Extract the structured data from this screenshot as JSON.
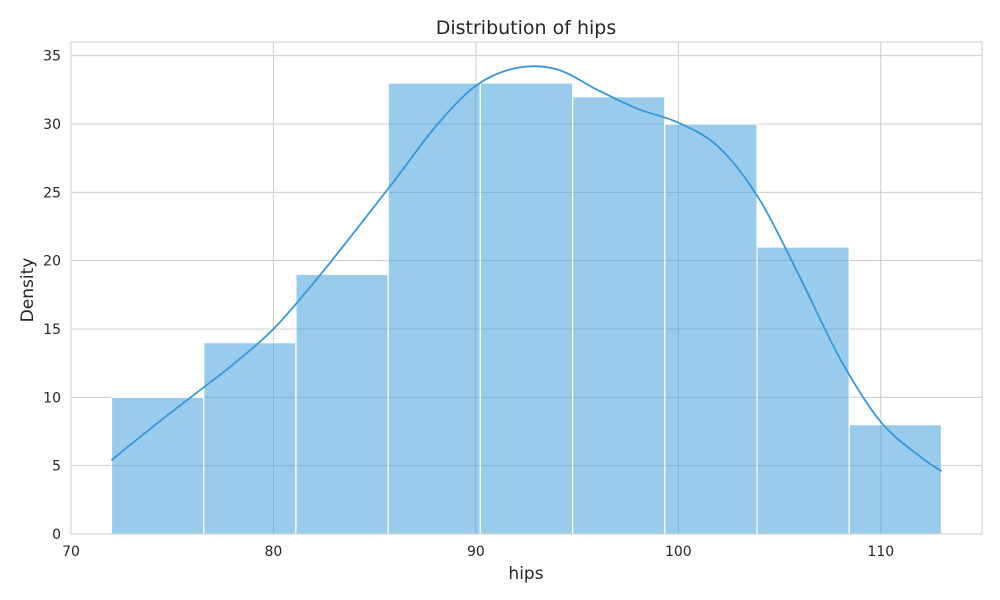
{
  "chart_data": {
    "type": "bar",
    "title": "Distribution of hips",
    "xlabel": "hips",
    "ylabel": "Density",
    "xlim": [
      70,
      115
    ],
    "ylim": [
      0,
      36
    ],
    "xticks": [
      70,
      80,
      90,
      100,
      110
    ],
    "yticks": [
      0,
      5,
      10,
      15,
      20,
      25,
      30,
      35
    ],
    "grid": true,
    "bar_color": "#3498db",
    "line_color": "#3498db",
    "histogram": {
      "bin_edges": [
        72.0,
        76.56,
        81.11,
        85.67,
        90.22,
        94.78,
        99.33,
        103.89,
        108.44,
        113.0
      ],
      "values": [
        10,
        14,
        19,
        33,
        33,
        32,
        30,
        21,
        8
      ]
    },
    "kde": {
      "x": [
        72,
        74,
        76,
        78,
        80,
        82,
        84,
        86,
        88,
        90,
        92,
        94,
        96,
        98,
        100,
        102,
        104,
        106,
        108,
        110,
        112,
        113
      ],
      "y": [
        5.4,
        7.8,
        10.1,
        12.4,
        15.0,
        18.4,
        22.1,
        25.9,
        29.8,
        32.8,
        34.1,
        34.0,
        32.5,
        31.1,
        30.1,
        28.3,
        24.5,
        18.8,
        12.8,
        8.2,
        5.6,
        4.6
      ]
    }
  }
}
